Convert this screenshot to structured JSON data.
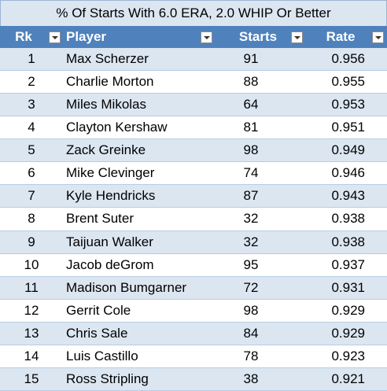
{
  "title": "% Of Starts With 6.0 ERA, 2.0 WHIP Or Better",
  "table": {
    "columns": [
      "Rk",
      "Player",
      "Starts",
      "Rate"
    ],
    "rows": [
      [
        1,
        "Max Scherzer",
        91,
        0.956
      ],
      [
        2,
        "Charlie Morton",
        88,
        0.955
      ],
      [
        3,
        "Miles Mikolas",
        64,
        0.953
      ],
      [
        4,
        "Clayton Kershaw",
        81,
        0.951
      ],
      [
        5,
        "Zack Greinke",
        98,
        0.949
      ],
      [
        6,
        "Mike Clevinger",
        74,
        0.946
      ],
      [
        7,
        "Kyle Hendricks",
        87,
        0.943
      ],
      [
        8,
        "Brent Suter",
        32,
        0.938
      ],
      [
        9,
        "Taijuan Walker",
        32,
        0.938
      ],
      [
        10,
        "Jacob deGrom",
        95,
        0.937
      ],
      [
        11,
        "Madison Bumgarner",
        72,
        0.931
      ],
      [
        12,
        "Gerrit Cole",
        98,
        0.929
      ],
      [
        13,
        "Chris Sale",
        84,
        0.929
      ],
      [
        14,
        "Luis Castillo",
        78,
        0.923
      ],
      [
        15,
        "Ross Stripling",
        38,
        0.921
      ]
    ]
  }
}
